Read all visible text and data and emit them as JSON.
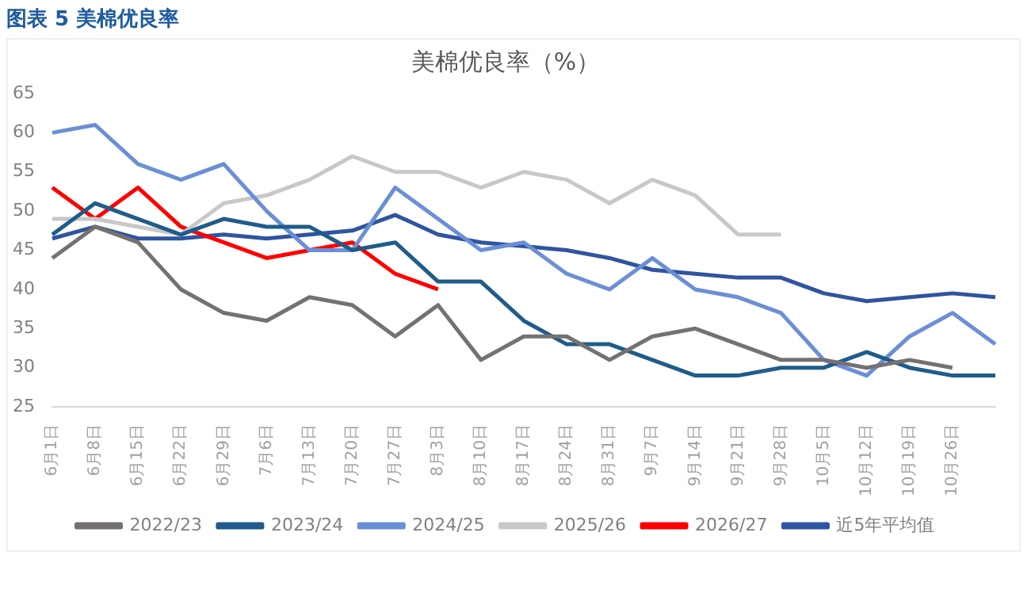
{
  "chart_data": {
    "type": "line",
    "title": "美棉优良率（%）",
    "annotations": [
      "图表 5 美棉优良率"
    ],
    "categories": [
      "6月1日",
      "6月8日",
      "6月15日",
      "6月22日",
      "6月29日",
      "7月6日",
      "7月13日",
      "7月20日",
      "7月27日",
      "8月3日",
      "8月10日",
      "8月17日",
      "8月24日",
      "8月31日",
      "9月7日",
      "9月14日",
      "9月21日",
      "9月28日",
      "10月5日",
      "10月12日",
      "10月19日",
      "10月26日",
      null
    ],
    "series": [
      {
        "name": "2022/23",
        "color": "#767171",
        "values": [
          44,
          48,
          46,
          40,
          37,
          36,
          39,
          38,
          34,
          38,
          31,
          34,
          34,
          31,
          34,
          35,
          33,
          31,
          31,
          30,
          31,
          30,
          null
        ]
      },
      {
        "name": "2023/24",
        "color": "#1f5c8b",
        "values": [
          47,
          51,
          49,
          47,
          49,
          48,
          48,
          45,
          46,
          41,
          41,
          36,
          33,
          33,
          31,
          29,
          29,
          30,
          30,
          32,
          30,
          29,
          29
        ]
      },
      {
        "name": "2024/25",
        "color": "#6b8fd6",
        "values": [
          60,
          61,
          56,
          54,
          56,
          50,
          45,
          45,
          53,
          49,
          45,
          46,
          42,
          40,
          44,
          40,
          39,
          37,
          31,
          29,
          34,
          37,
          33
        ]
      },
      {
        "name": "2025/26",
        "color": "#c8c8c8",
        "values": [
          49,
          49,
          48,
          47,
          51,
          52,
          54,
          57,
          55,
          55,
          53,
          55,
          54,
          51,
          54,
          52,
          47,
          47,
          null,
          null,
          null,
          null,
          null
        ]
      },
      {
        "name": "2026/27",
        "color": "#ff0000",
        "values": [
          53,
          49,
          53,
          48,
          46,
          44,
          45,
          46,
          42,
          40,
          null,
          null,
          null,
          null,
          null,
          null,
          null,
          null,
          null,
          null,
          null,
          null,
          null
        ]
      },
      {
        "name": "近5年平均值",
        "color": "#2f55a0",
        "values": [
          46.5,
          48,
          46.5,
          46.5,
          47,
          46.5,
          47,
          47.5,
          49.5,
          47,
          46,
          45.5,
          45,
          44,
          42.5,
          42,
          41.5,
          41.5,
          39.5,
          38.5,
          39,
          39.5,
          39
        ]
      }
    ],
    "ylim": [
      25,
      65
    ],
    "yticks": [
      25,
      30,
      35,
      40,
      45,
      50,
      55,
      60,
      65
    ],
    "grid": false,
    "legend": "bottom"
  }
}
